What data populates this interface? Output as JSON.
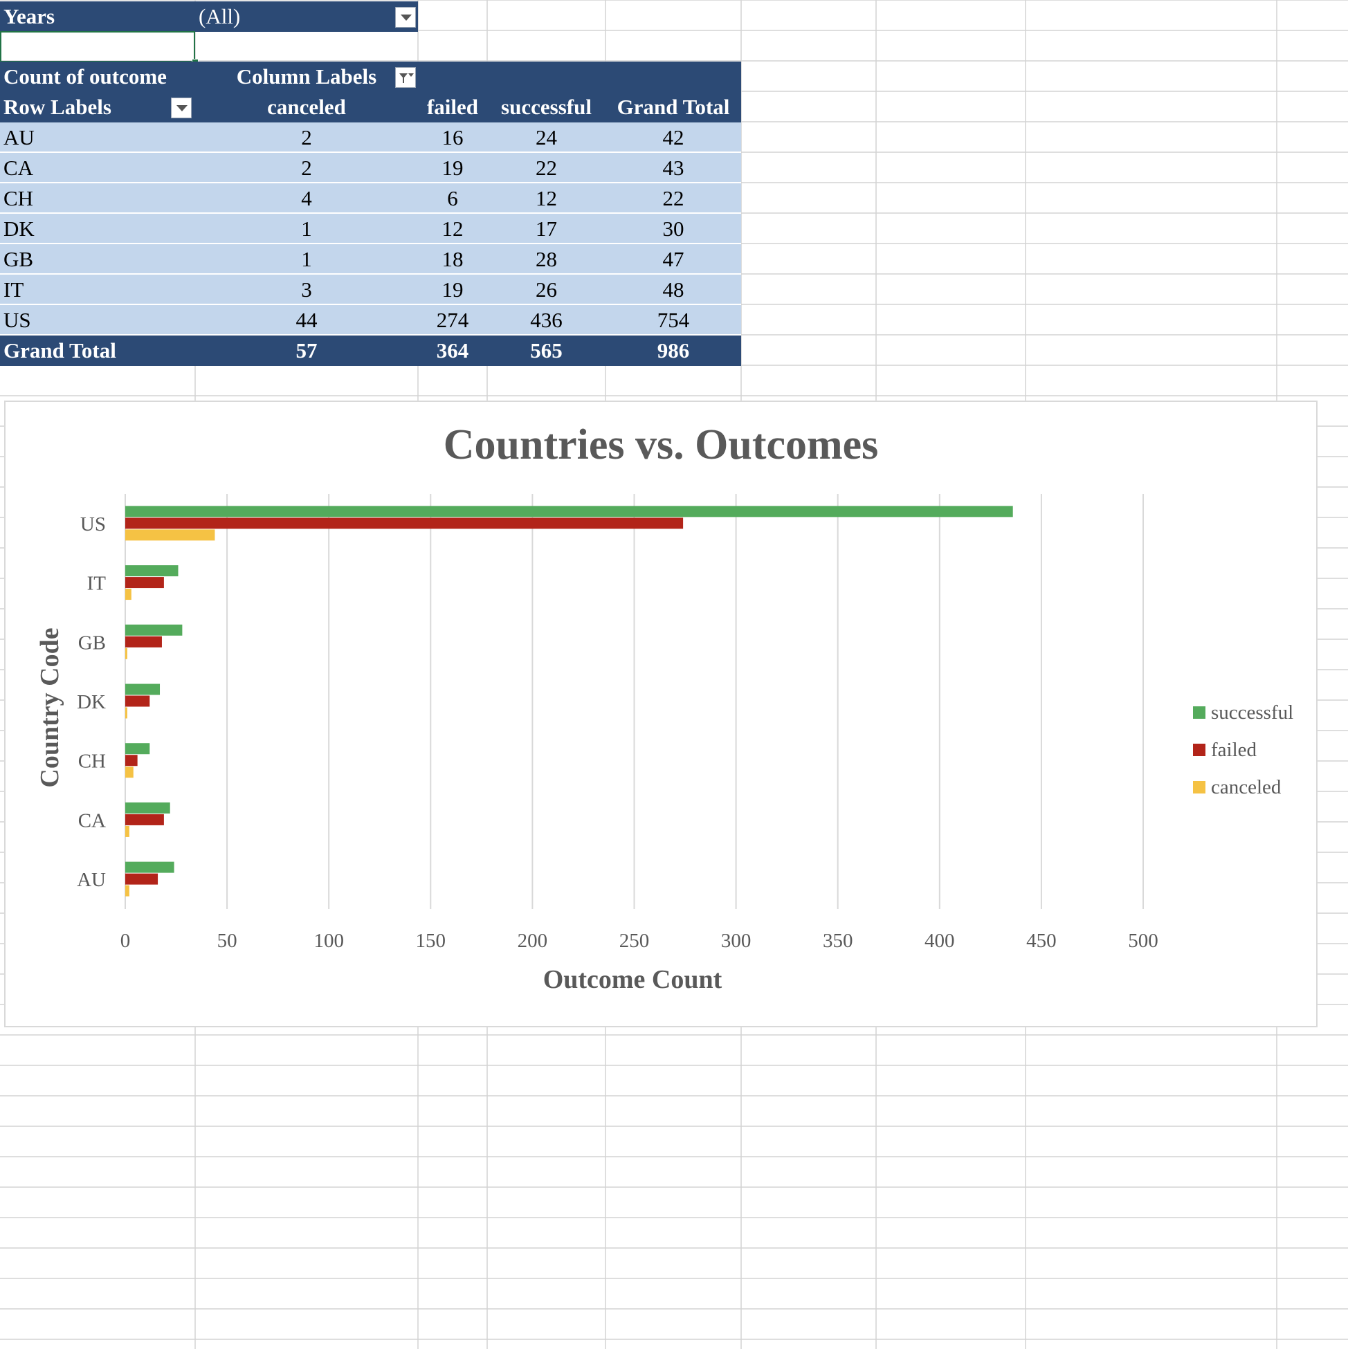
{
  "filter": {
    "label": "Years",
    "value": "(All)"
  },
  "pivot": {
    "corner_label": "Count of outcome",
    "column_labels": "Column Labels",
    "row_labels": "Row Labels",
    "columns": [
      "canceled",
      "failed",
      "successful",
      "Grand Total"
    ],
    "rows": [
      {
        "label": "AU",
        "values": [
          "2",
          "16",
          "24",
          "42"
        ]
      },
      {
        "label": "CA",
        "values": [
          "2",
          "19",
          "22",
          "43"
        ]
      },
      {
        "label": "CH",
        "values": [
          "4",
          "6",
          "12",
          "22"
        ]
      },
      {
        "label": "DK",
        "values": [
          "1",
          "12",
          "17",
          "30"
        ]
      },
      {
        "label": "GB",
        "values": [
          "1",
          "18",
          "28",
          "47"
        ]
      },
      {
        "label": "IT",
        "values": [
          "3",
          "19",
          "26",
          "48"
        ]
      },
      {
        "label": "US",
        "values": [
          "44",
          "274",
          "436",
          "754"
        ]
      }
    ],
    "grand_total": {
      "label": "Grand Total",
      "values": [
        "57",
        "364",
        "565",
        "986"
      ]
    }
  },
  "colors": {
    "header_bg": "#2c4a75",
    "row_bg": "#c3d6ec",
    "successful": "#54ab5c",
    "failed": "#b22419",
    "canceled": "#f5c244"
  },
  "chart_data": {
    "type": "bar",
    "orientation": "horizontal",
    "title": "Countries vs. Outcomes",
    "xlabel": "Outcome Count",
    "ylabel": "Country Code",
    "categories": [
      "AU",
      "CA",
      "CH",
      "DK",
      "GB",
      "IT",
      "US"
    ],
    "series": [
      {
        "name": "successful",
        "values": [
          24,
          22,
          12,
          17,
          28,
          26,
          436
        ]
      },
      {
        "name": "failed",
        "values": [
          16,
          19,
          6,
          12,
          18,
          19,
          274
        ]
      },
      {
        "name": "canceled",
        "values": [
          2,
          2,
          4,
          1,
          1,
          3,
          44
        ]
      }
    ],
    "xlim": [
      0,
      500
    ],
    "xticks": [
      0,
      50,
      100,
      150,
      200,
      250,
      300,
      350,
      400,
      450,
      500
    ],
    "grid": true,
    "legend": "right"
  }
}
